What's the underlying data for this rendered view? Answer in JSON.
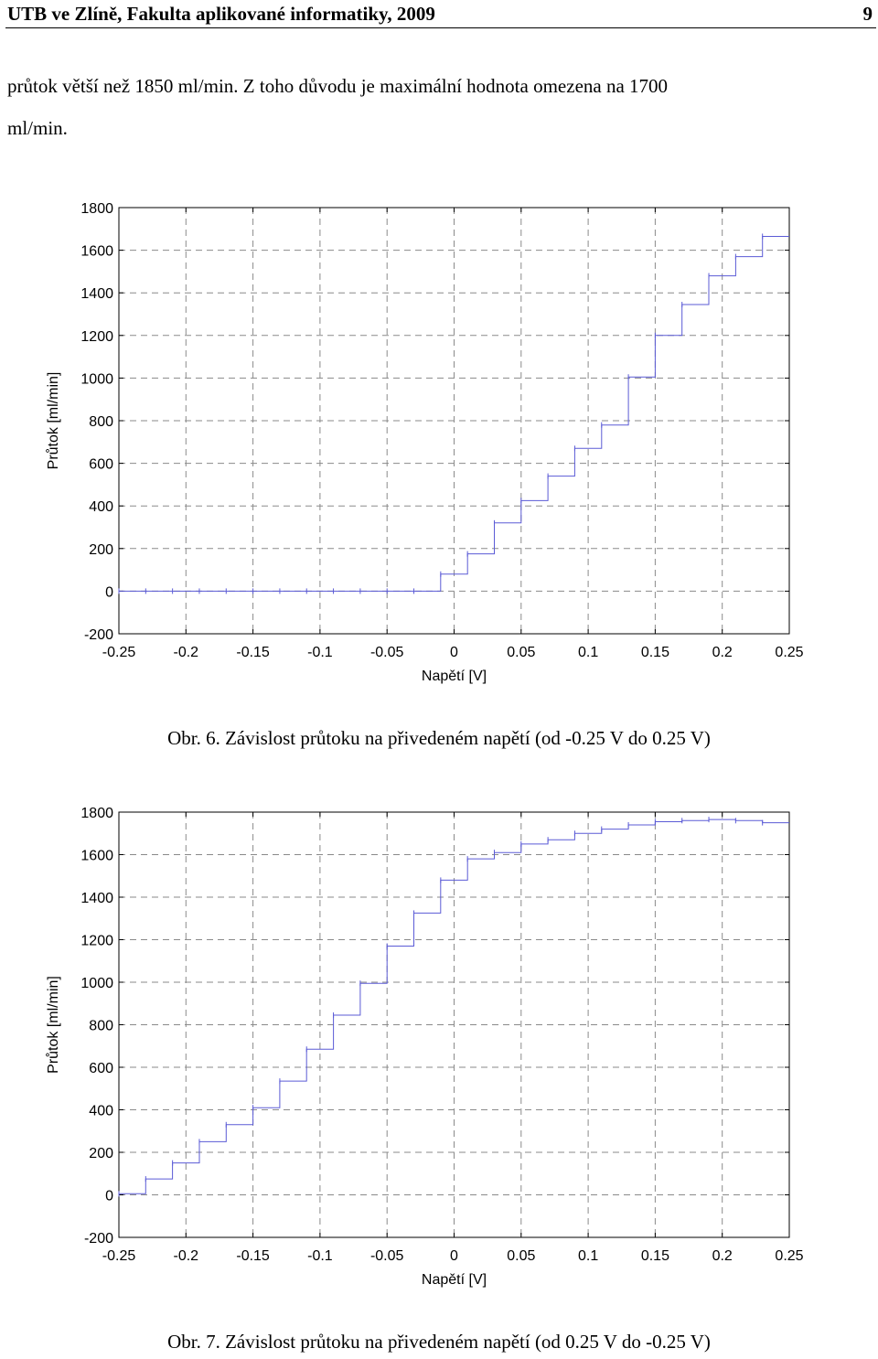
{
  "header": {
    "title": "UTB ve Zlíně, Fakulta aplikované informatiky, 2009",
    "page_number": "9"
  },
  "text": {
    "line1": "průtok větší než 1850 ml/min. Z toho důvodu je maximální hodnota omezena na 1700",
    "line2": "ml/min."
  },
  "captions": {
    "fig6": "Obr. 6. Závislost průtoku na přivedeném napětí (od -0.25 V do 0.25 V)",
    "fig7": "Obr. 7. Závislost průtoku na přivedeném napětí (od 0.25 V do -0.25 V)"
  },
  "colors": {
    "line": "#5b5bd6",
    "grid": "#8a8a8a",
    "axis": "#000000"
  },
  "chart_data": [
    {
      "type": "line",
      "xlabel": "Napětí [V]",
      "ylabel": "Průtok [ml/min]",
      "xlim": [
        -0.25,
        0.25
      ],
      "ylim": [
        -200,
        1800
      ],
      "xticks": [
        "-0.25",
        "-0.2",
        "-0.15",
        "-0.1",
        "-0.05",
        "0",
        "0.05",
        "0.1",
        "0.15",
        "0.2",
        "0.25"
      ],
      "yticks": [
        "1800",
        "1600",
        "1400",
        "1200",
        "1000",
        "800",
        "600",
        "400",
        "200",
        "0",
        "-200"
      ],
      "grid": true,
      "step_width": 0.02,
      "x": [
        -0.25,
        -0.23,
        -0.21,
        -0.19,
        -0.17,
        -0.15,
        -0.13,
        -0.11,
        -0.09,
        -0.07,
        -0.05,
        -0.03,
        -0.01,
        0.01,
        0.03,
        0.05,
        0.07,
        0.09,
        0.11,
        0.13,
        0.15,
        0.17,
        0.19,
        0.21,
        0.23
      ],
      "y": [
        0,
        0,
        0,
        0,
        0,
        0,
        0,
        0,
        0,
        0,
        0,
        0,
        80,
        175,
        320,
        425,
        540,
        670,
        780,
        1005,
        1200,
        1345,
        1480,
        1570,
        1665
      ]
    },
    {
      "type": "line",
      "xlabel": "Napětí [V]",
      "ylabel": "Průtok [ml/min]",
      "xlim": [
        -0.25,
        0.25
      ],
      "ylim": [
        -200,
        1800
      ],
      "xticks": [
        "-0.25",
        "-0.2",
        "-0.15",
        "-0.1",
        "-0.05",
        "0",
        "0.05",
        "0.1",
        "0.15",
        "0.2",
        "0.25"
      ],
      "yticks": [
        "1800",
        "1600",
        "1400",
        "1200",
        "1000",
        "800",
        "600",
        "400",
        "200",
        "0",
        "-200"
      ],
      "grid": true,
      "step_width": 0.02,
      "x": [
        -0.25,
        -0.23,
        -0.21,
        -0.19,
        -0.17,
        -0.15,
        -0.13,
        -0.11,
        -0.09,
        -0.07,
        -0.05,
        -0.03,
        -0.01,
        0.01,
        0.03,
        0.05,
        0.07,
        0.09,
        0.11,
        0.13,
        0.15,
        0.17,
        0.19,
        0.21,
        0.23
      ],
      "y": [
        5,
        75,
        150,
        250,
        330,
        410,
        535,
        685,
        845,
        995,
        1170,
        1325,
        1480,
        1580,
        1610,
        1650,
        1670,
        1700,
        1720,
        1740,
        1755,
        1760,
        1765,
        1760,
        1750
      ]
    }
  ]
}
